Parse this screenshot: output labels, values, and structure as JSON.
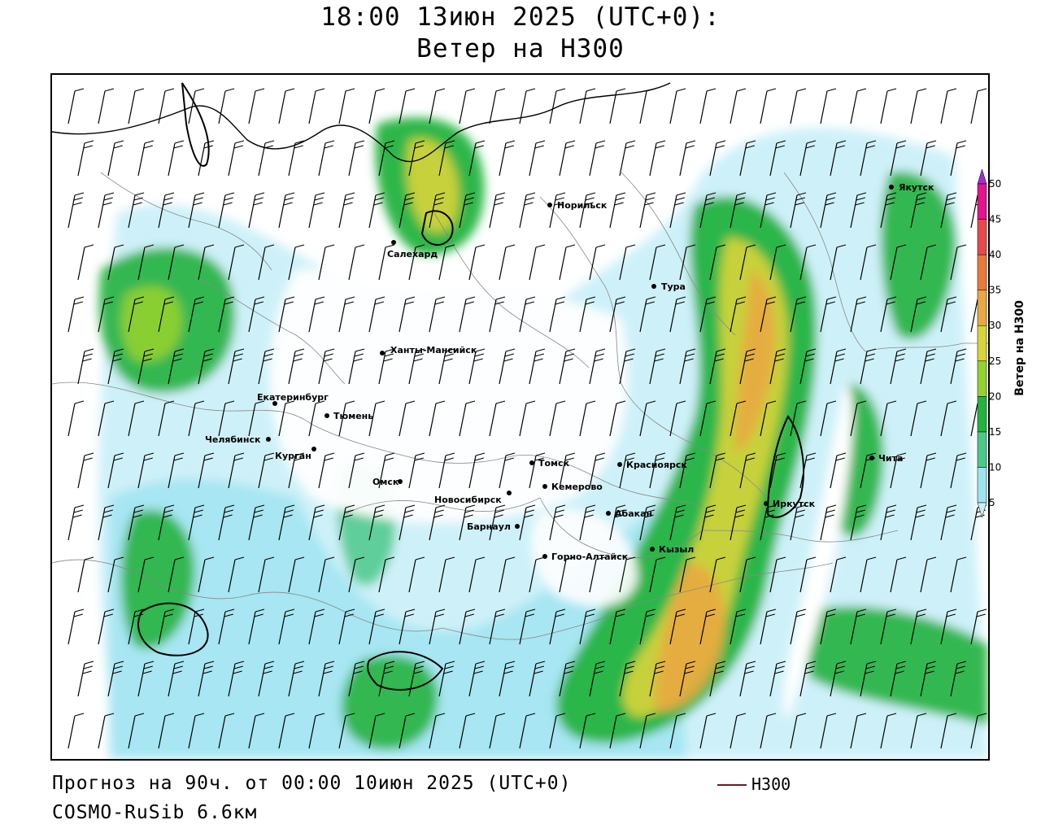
{
  "header": {
    "title_line1": "18:00 13июн 2025 (UTC+0):",
    "title_line2": "Ветер на H300"
  },
  "footer": {
    "forecast": "Прогноз на 90ч. от 00:00 10июн 2025 (UTC+0)",
    "model": "COSMO-RuSib 6.6км",
    "legend_label": "H300"
  },
  "colorbar": {
    "title": "Ветер на H300",
    "ticks": [
      "5",
      "10",
      "15",
      "20",
      "25",
      "30",
      "35",
      "40",
      "45",
      "50"
    ],
    "colors": [
      "#c9f0f8",
      "#9ee3f0",
      "#4cc98a",
      "#23b33f",
      "#93d22f",
      "#d8d43a",
      "#e8a842",
      "#ea7a3a",
      "#e84a4a",
      "#e3148c",
      "#a02ed0"
    ]
  },
  "cities": [
    {
      "name": "Якутск"
    },
    {
      "name": "Норильск"
    },
    {
      "name": "Салехард"
    },
    {
      "name": "Тура"
    },
    {
      "name": "Ханты-Мансийск"
    },
    {
      "name": "Екатеринбург"
    },
    {
      "name": "Тюмень"
    },
    {
      "name": "Челябинск"
    },
    {
      "name": "Курган"
    },
    {
      "name": "Омск"
    },
    {
      "name": "Новосибирск"
    },
    {
      "name": "Томск"
    },
    {
      "name": "Красноярск"
    },
    {
      "name": "Кемерово"
    },
    {
      "name": "Барнаул"
    },
    {
      "name": "Абакан"
    },
    {
      "name": "Иркутск"
    },
    {
      "name": "Чита"
    },
    {
      "name": "Кызыл"
    },
    {
      "name": "Горно-Алтайск"
    }
  ]
}
